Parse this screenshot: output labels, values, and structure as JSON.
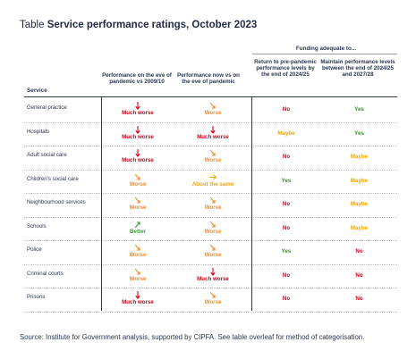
{
  "title": {
    "prefix": "Table",
    "main": "Service performance ratings, October 2023"
  },
  "funding_header": "Funding adequate to...",
  "columns": {
    "service": "Service",
    "c1": "Performance on the eve of pandemic vs 2009/10",
    "c2": "Performance now vs on the eve of pandemic",
    "c3": "Return to pre-pandemic performance levels by the end of 2024/25",
    "c4": "Maintain performance levels between the end of 2024/25 and 2027/28"
  },
  "colors": {
    "much_worse": "#d0021b",
    "worse": "#f08a24",
    "about_same": "#f0a500",
    "better": "#3a9a3a",
    "no": "#d0021b",
    "yes": "#3a8a2a",
    "maybe": "#f0a500"
  },
  "rows": [
    {
      "service": "General practice",
      "c1": "Much worse",
      "c2": "Worse",
      "c3": "No",
      "c4": "Yes"
    },
    {
      "service": "Hospitals",
      "c1": "Much worse",
      "c2": "Much worse",
      "c3": "Maybe",
      "c4": "Yes"
    },
    {
      "service": "Adult social care",
      "c1": "Much worse",
      "c2": "Worse",
      "c3": "No",
      "c4": "Maybe"
    },
    {
      "service": "Children's social care",
      "c1": "Worse",
      "c2": "About the same",
      "c3": "Yes",
      "c4": "Maybe"
    },
    {
      "service": "Neighbourhood services",
      "c1": "Worse",
      "c2": "Worse",
      "c3": "No",
      "c4": "Maybe"
    },
    {
      "service": "Schools",
      "c1": "Better",
      "c2": "Worse",
      "c3": "No",
      "c4": "Maybe"
    },
    {
      "service": "Police",
      "c1": "Worse",
      "c2": "Worse",
      "c3": "Yes",
      "c4": "No"
    },
    {
      "service": "Criminal courts",
      "c1": "Worse",
      "c2": "Much worse",
      "c3": "No",
      "c4": "No"
    },
    {
      "service": "Prisons",
      "c1": "Much worse",
      "c2": "Worse",
      "c3": "No",
      "c4": "No"
    }
  ],
  "source": "Source: Institute for Government analysis, supported by CIPFA. See table overleaf for method of categorisation."
}
